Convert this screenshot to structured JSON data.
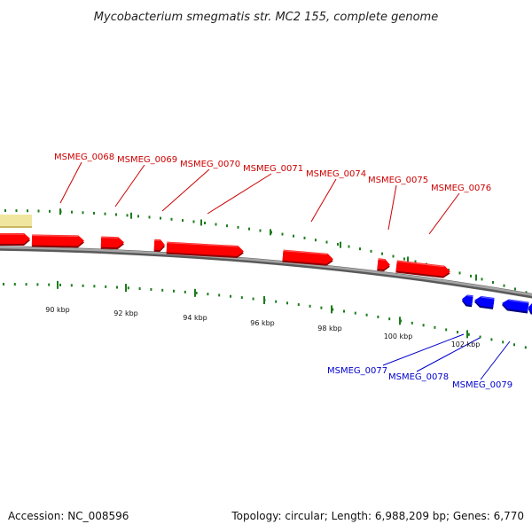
{
  "title": "Mycobacterium smegmatis str. MC2 155, complete genome",
  "footer": {
    "accession": "Accession: NC_008596",
    "stats": "Topology: circular; Length: 6,988,209 bp; Genes: 6,770"
  },
  "colors": {
    "backbone": "#808080",
    "tick": "#1d7d1d",
    "forward_gene": "#ff0000",
    "reverse_gene": "#0000ff",
    "forward_label": "#cc0000",
    "reverse_label": "#0000cc",
    "other_feature": "#f0e6a0"
  },
  "axis_ticks": [
    {
      "label": "90 kbp"
    },
    {
      "label": "92 kbp"
    },
    {
      "label": "94 kbp"
    },
    {
      "label": "96 kbp"
    },
    {
      "label": "98 kbp"
    },
    {
      "label": "100 kbp"
    },
    {
      "label": "102 kbp"
    }
  ],
  "forward_labels": [
    "MSMEG_0068",
    "MSMEG_0069",
    "MSMEG_0070",
    "MSMEG_0071",
    "MSMEG_0074",
    "MSMEG_0075",
    "MSMEG_0076"
  ],
  "reverse_labels": [
    "MSMEG_0077",
    "MSMEG_0078",
    "MSMEG_0079"
  ]
}
